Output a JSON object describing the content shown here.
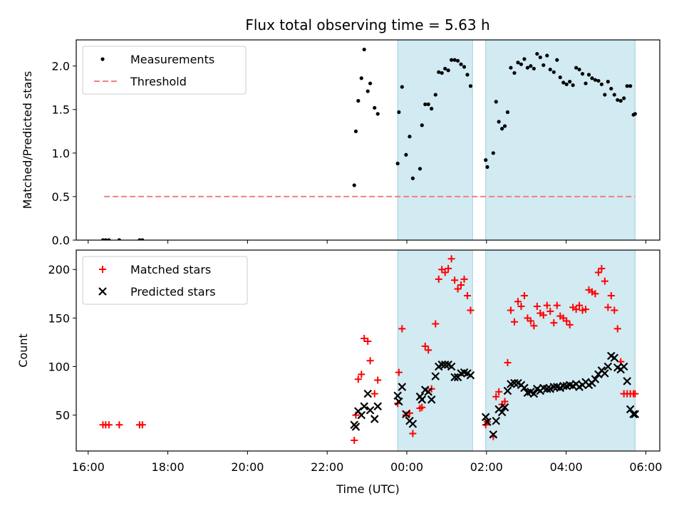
{
  "title": "Flux total observing time = 5.63 h",
  "colors": {
    "measurement": "#000000",
    "threshold": "#f08080",
    "matched": "#ff0000",
    "predicted": "#000000",
    "shade_fill": "#add8e6",
    "shade_edge": "#9fcfdc"
  },
  "chart_data": [
    {
      "type": "scatter",
      "panel": "top",
      "title": "Flux total observing time = 5.63 h",
      "xlabel": "",
      "ylabel": "Matched/Predicted stars",
      "xlim": [
        15.7,
        30.35
      ],
      "ylim": [
        0.0,
        2.3
      ],
      "yticks": [
        0.0,
        0.5,
        1.0,
        1.5,
        2.0
      ],
      "ytick_labels": [
        "0.0",
        "0.5",
        "1.0",
        "1.5",
        "2.0"
      ],
      "legend": {
        "position": "top-left",
        "entries": [
          {
            "label": "Measurements",
            "marker": "dot"
          },
          {
            "label": "Threshold",
            "marker": "dashed-line"
          }
        ]
      },
      "shaded_regions": [
        [
          23.77,
          25.65
        ],
        [
          25.98,
          29.73
        ]
      ],
      "threshold": {
        "y": 0.5,
        "x": [
          16.4,
          29.73
        ]
      },
      "series": [
        {
          "name": "Measurements",
          "x": [
            16.37,
            16.44,
            16.52,
            16.78,
            17.29,
            17.36,
            22.68,
            22.72,
            22.78,
            22.86,
            22.93,
            23.02,
            23.08,
            23.19,
            23.27,
            23.77,
            23.8,
            23.88,
            23.98,
            24.07,
            24.15,
            24.33,
            24.38,
            24.46,
            24.54,
            24.62,
            24.72,
            24.8,
            24.88,
            24.96,
            25.04,
            25.12,
            25.2,
            25.28,
            25.36,
            25.44,
            25.52,
            25.6,
            25.98,
            26.02,
            26.17,
            26.24,
            26.31,
            26.39,
            26.46,
            26.53,
            26.61,
            26.7,
            26.79,
            26.87,
            26.95,
            27.03,
            27.11,
            27.19,
            27.27,
            27.35,
            27.43,
            27.52,
            27.6,
            27.69,
            27.77,
            27.85,
            27.93,
            28.01,
            28.09,
            28.17,
            28.25,
            28.33,
            28.41,
            28.49,
            28.57,
            28.65,
            28.73,
            28.81,
            28.89,
            28.97,
            29.05,
            29.13,
            29.21,
            29.29,
            29.37,
            29.45,
            29.53,
            29.61,
            29.69,
            29.73
          ],
          "y": [
            0.0,
            0.0,
            0.0,
            0.0,
            0.0,
            0.0,
            0.63,
            1.25,
            1.6,
            1.86,
            2.19,
            1.71,
            1.8,
            1.52,
            1.45,
            0.88,
            1.47,
            1.76,
            0.98,
            1.19,
            0.71,
            0.82,
            1.32,
            1.56,
            1.56,
            1.51,
            1.67,
            1.93,
            1.92,
            1.97,
            1.95,
            2.07,
            2.07,
            2.06,
            2.02,
            1.99,
            1.9,
            1.77,
            0.92,
            0.84,
            1.0,
            1.59,
            1.36,
            1.28,
            1.31,
            1.47,
            1.98,
            1.92,
            2.04,
            2.02,
            2.08,
            1.98,
            2.0,
            1.97,
            2.14,
            2.1,
            2.01,
            2.12,
            1.96,
            1.93,
            2.07,
            1.87,
            1.81,
            1.79,
            1.82,
            1.78,
            1.98,
            1.96,
            1.91,
            1.8,
            1.9,
            1.86,
            1.84,
            1.83,
            1.79,
            1.67,
            1.82,
            1.74,
            1.67,
            1.61,
            1.6,
            1.63,
            1.77,
            1.77,
            1.44,
            1.45
          ]
        }
      ]
    },
    {
      "type": "scatter",
      "panel": "bottom",
      "xlabel": "Time (UTC)",
      "ylabel": "Count",
      "xlim": [
        15.7,
        30.35
      ],
      "ylim": [
        13,
        220
      ],
      "yticks": [
        50,
        100,
        150,
        200
      ],
      "ytick_labels": [
        "50",
        "100",
        "150",
        "200"
      ],
      "xticks": [
        16,
        18,
        20,
        22,
        24,
        26,
        28,
        30
      ],
      "xtick_labels": [
        "16:00",
        "18:00",
        "20:00",
        "22:00",
        "00:00",
        "02:00",
        "04:00",
        "06:00"
      ],
      "legend": {
        "position": "top-left",
        "entries": [
          {
            "label": "Matched stars",
            "marker": "plus"
          },
          {
            "label": "Predicted stars",
            "marker": "x"
          }
        ]
      },
      "shaded_regions": [
        [
          23.77,
          25.65
        ],
        [
          25.98,
          29.73
        ]
      ],
      "series": [
        {
          "name": "Matched stars",
          "x": [
            16.37,
            16.44,
            16.52,
            16.78,
            17.29,
            17.36,
            22.68,
            22.72,
            22.78,
            22.86,
            22.93,
            23.02,
            23.08,
            23.19,
            23.27,
            23.77,
            23.8,
            23.88,
            23.98,
            24.07,
            24.15,
            24.33,
            24.38,
            24.46,
            24.54,
            24.62,
            24.72,
            24.8,
            24.88,
            24.96,
            25.04,
            25.12,
            25.2,
            25.28,
            25.36,
            25.44,
            25.52,
            25.6,
            25.98,
            26.02,
            26.17,
            26.24,
            26.31,
            26.39,
            26.46,
            26.53,
            26.61,
            26.7,
            26.79,
            26.87,
            26.95,
            27.03,
            27.11,
            27.19,
            27.27,
            27.35,
            27.43,
            27.52,
            27.6,
            27.69,
            27.77,
            27.85,
            27.93,
            28.01,
            28.09,
            28.17,
            28.25,
            28.33,
            28.41,
            28.49,
            28.57,
            28.65,
            28.73,
            28.81,
            28.89,
            28.97,
            29.05,
            29.13,
            29.21,
            29.29,
            29.37,
            29.45,
            29.53,
            29.61,
            29.69,
            29.73
          ],
          "y": [
            40,
            40,
            40,
            40,
            40,
            40,
            24,
            50,
            87,
            92,
            129,
            126,
            106,
            72,
            86,
            62,
            94,
            139,
            50,
            52,
            31,
            57,
            58,
            121,
            117,
            77,
            144,
            190,
            200,
            197,
            201,
            211,
            189,
            180,
            184,
            190,
            173,
            158,
            40,
            43,
            28,
            69,
            74,
            61,
            64,
            104,
            158,
            146,
            167,
            162,
            173,
            150,
            147,
            142,
            162,
            155,
            153,
            163,
            157,
            145,
            163,
            152,
            150,
            147,
            143,
            161,
            159,
            163,
            158,
            159,
            179,
            177,
            175,
            197,
            201,
            188,
            161,
            173,
            158,
            139,
            105,
            72,
            72,
            72,
            72,
            72
          ]
        },
        {
          "name": "Predicted stars",
          "x": [
            22.68,
            22.72,
            22.78,
            22.86,
            22.93,
            23.02,
            23.08,
            23.19,
            23.27,
            23.77,
            23.8,
            23.88,
            23.98,
            24.07,
            24.15,
            24.33,
            24.38,
            24.46,
            24.54,
            24.62,
            24.72,
            24.8,
            24.88,
            24.96,
            25.04,
            25.12,
            25.2,
            25.28,
            25.36,
            25.44,
            25.52,
            25.6,
            25.98,
            26.02,
            26.17,
            26.24,
            26.31,
            26.39,
            26.46,
            26.53,
            26.61,
            26.7,
            26.79,
            26.87,
            26.95,
            27.03,
            27.11,
            27.19,
            27.27,
            27.35,
            27.43,
            27.52,
            27.6,
            27.69,
            27.77,
            27.85,
            27.93,
            28.01,
            28.09,
            28.17,
            28.25,
            28.33,
            28.41,
            28.49,
            28.57,
            28.65,
            28.73,
            28.81,
            28.89,
            28.97,
            29.05,
            29.13,
            29.21,
            29.29,
            29.37,
            29.45,
            29.53,
            29.61,
            29.69,
            29.73
          ],
          "y": [
            40,
            38,
            54,
            50,
            59,
            72,
            55,
            46,
            59,
            70,
            64,
            79,
            51,
            44,
            41,
            69,
            66,
            76,
            74,
            66,
            90,
            100,
            102,
            102,
            102,
            100,
            89,
            89,
            93,
            94,
            93,
            91,
            48,
            43,
            30,
            44,
            56,
            53,
            58,
            75,
            82,
            83,
            83,
            81,
            78,
            73,
            74,
            72,
            77,
            75,
            78,
            77,
            77,
            79,
            79,
            78,
            80,
            80,
            81,
            80,
            82,
            79,
            81,
            84,
            81,
            83,
            87,
            92,
            96,
            93,
            100,
            111,
            109,
            99,
            97,
            100,
            85,
            56,
            51,
            51
          ]
        }
      ]
    }
  ]
}
